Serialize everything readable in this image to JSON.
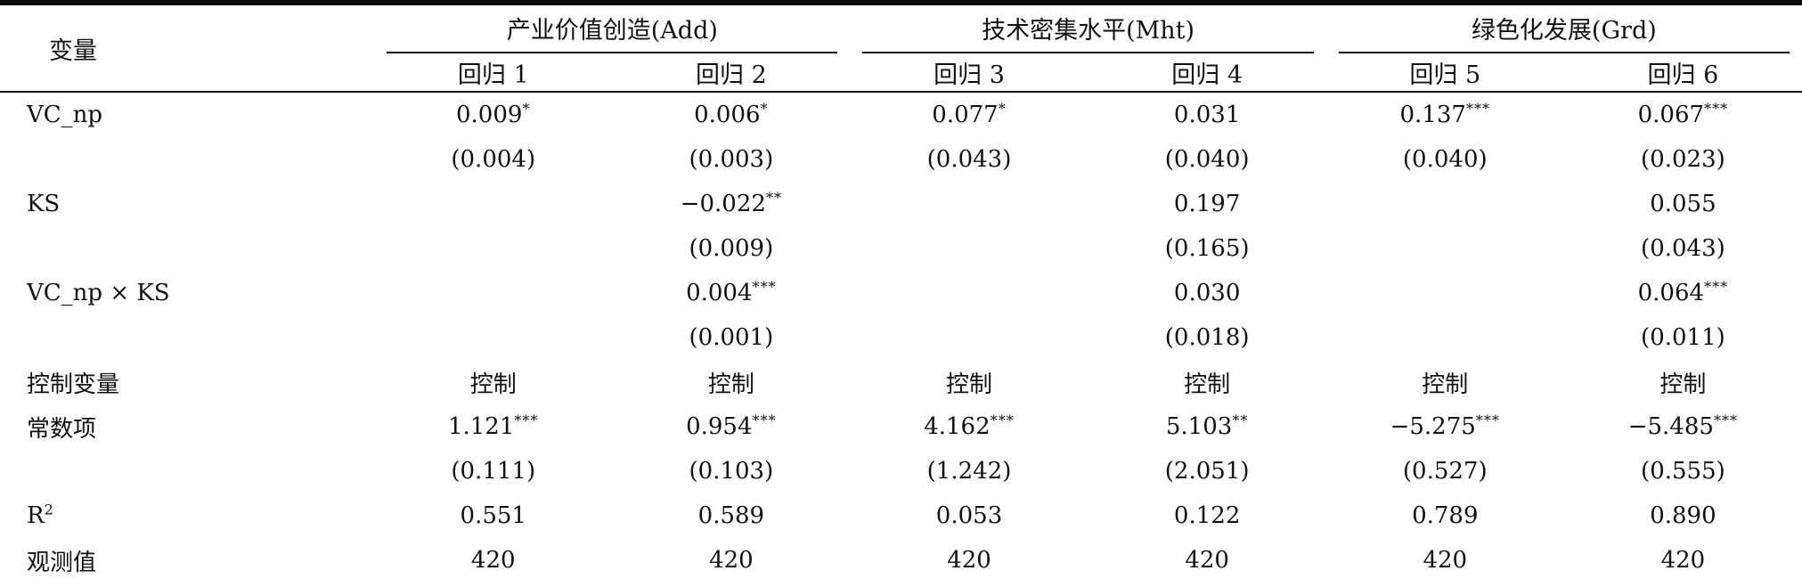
{
  "table": {
    "corner_label": "变量",
    "groups": [
      {
        "label": "产业价值创造(Add)",
        "cols": [
          "回归 1",
          "回归 2"
        ]
      },
      {
        "label": "技术密集水平(Mht)",
        "cols": [
          "回归 3",
          "回归 4"
        ]
      },
      {
        "label": "绿色化发展(Grd)",
        "cols": [
          "回归 5",
          "回归 6"
        ]
      }
    ],
    "rows": [
      {
        "label": "VC_np",
        "cells": [
          "0.009^*",
          "0.006^*",
          "0.077^*",
          "0.031",
          "0.137^***",
          "0.067^***"
        ]
      },
      {
        "label": "",
        "cells": [
          "(0.004)",
          "(0.003)",
          "(0.043)",
          "(0.040)",
          "(0.040)",
          "(0.023)"
        ]
      },
      {
        "label": "KS",
        "cells": [
          "",
          "−0.022^**",
          "",
          "0.197",
          "",
          "0.055"
        ]
      },
      {
        "label": "",
        "cells": [
          "",
          "(0.009)",
          "",
          "(0.165)",
          "",
          "(0.043)"
        ]
      },
      {
        "label": "VC_np × KS",
        "cells": [
          "",
          "0.004^***",
          "",
          "0.030",
          "",
          "0.064^***"
        ]
      },
      {
        "label": "",
        "cells": [
          "",
          "(0.001)",
          "",
          "(0.018)",
          "",
          "(0.011)"
        ]
      },
      {
        "label": "控制变量",
        "cells": [
          "控制",
          "控制",
          "控制",
          "控制",
          "控制",
          "控制"
        ]
      },
      {
        "label": "常数项",
        "cells": [
          "1.121^***",
          "0.954^***",
          "4.162^***",
          "5.103^**",
          "−5.275^***",
          "−5.485^***"
        ]
      },
      {
        "label": "",
        "cells": [
          "(0.111)",
          "(0.103)",
          "(1.242)",
          "(2.051)",
          "(0.527)",
          "(0.555)"
        ]
      },
      {
        "label": "R^2",
        "cells": [
          "0.551",
          "0.589",
          "0.053",
          "0.122",
          "0.789",
          "0.890"
        ]
      },
      {
        "label": "观测值",
        "cells": [
          "420",
          "420",
          "420",
          "420",
          "420",
          "420"
        ]
      }
    ]
  }
}
